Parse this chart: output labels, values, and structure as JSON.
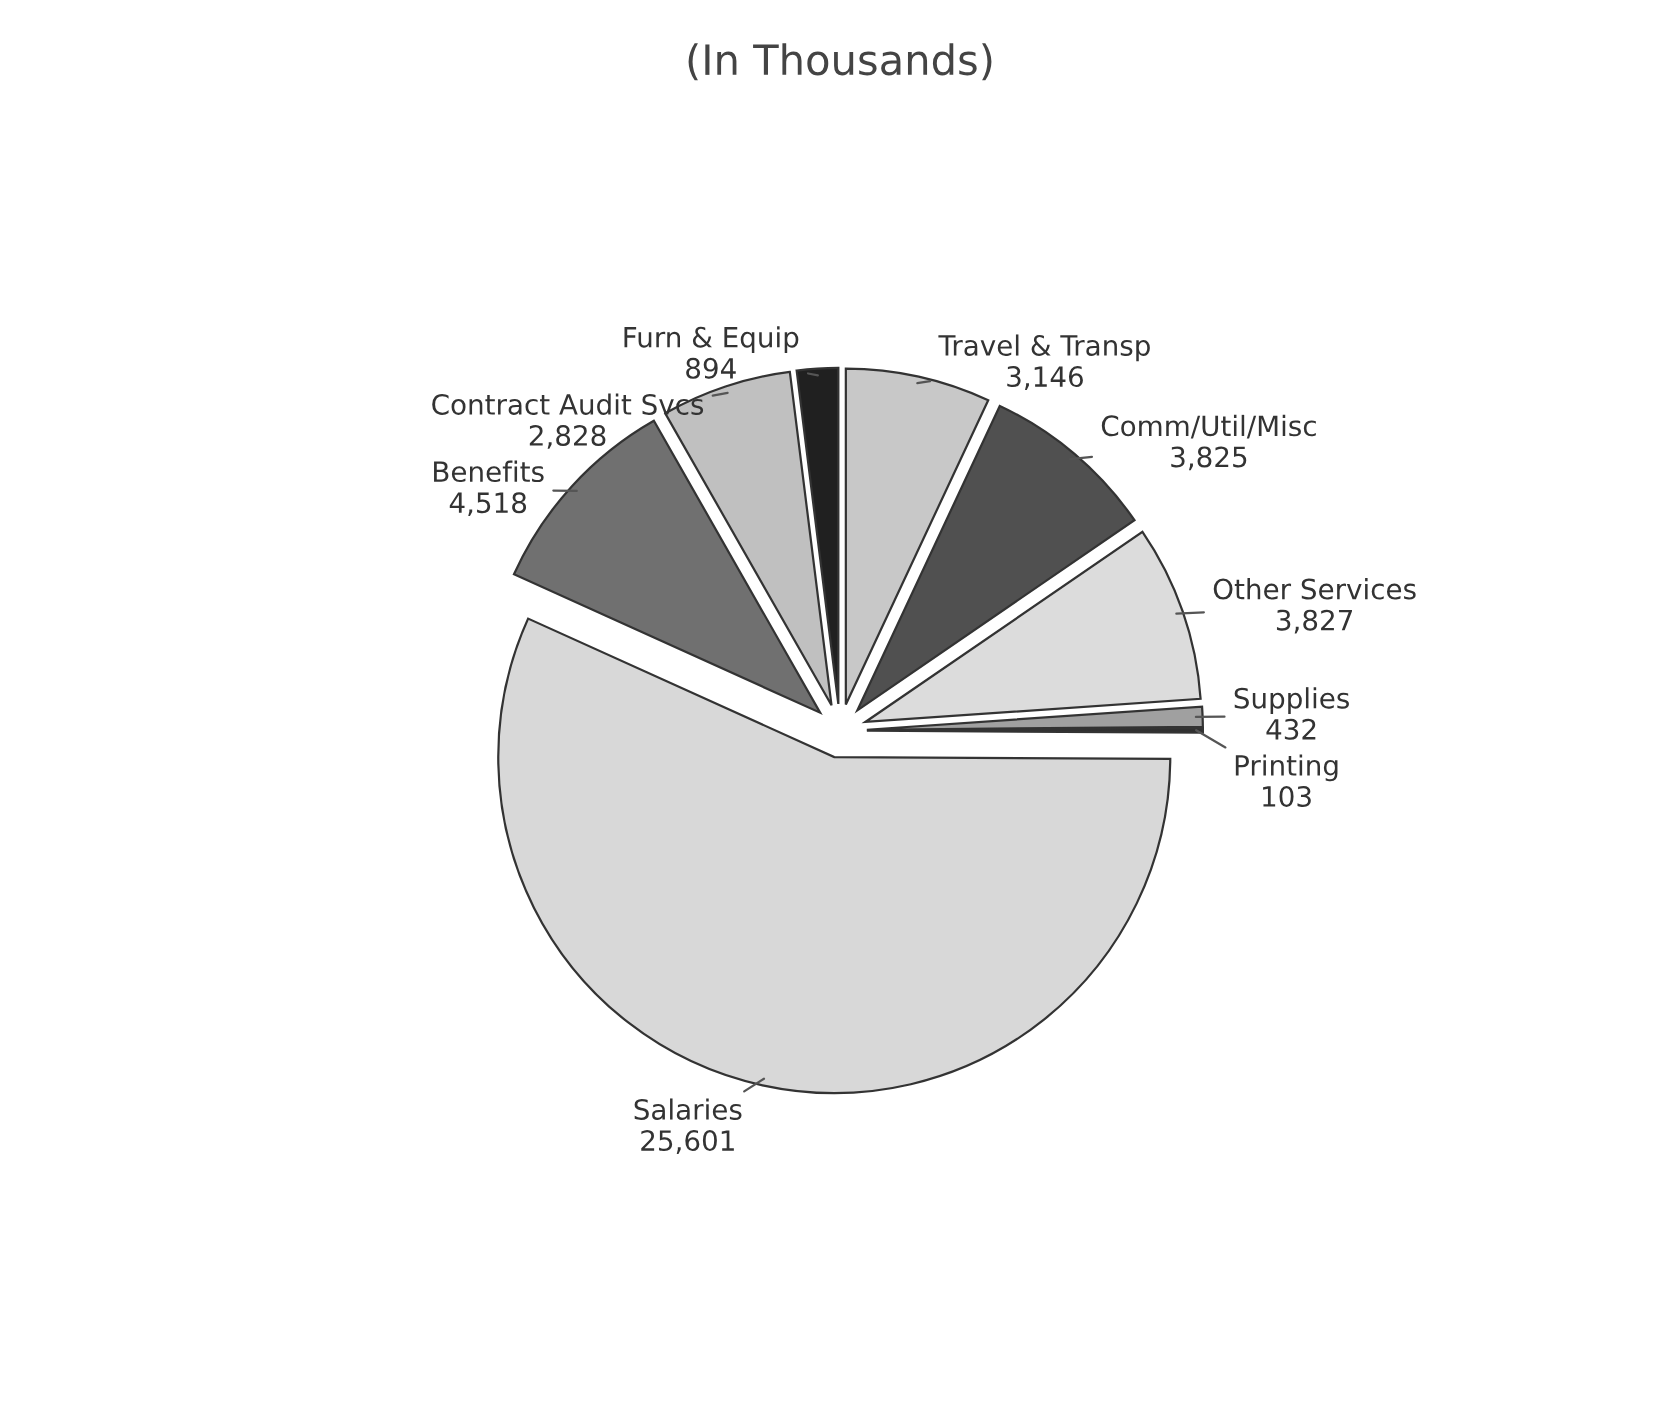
{
  "chart_data": {
    "type": "pie",
    "subtitle": "(In Thousands)",
    "categories": [
      "Travel & Transp",
      "Comm/Util/Misc",
      "Other Services",
      "Supplies",
      "Printing",
      "Salaries",
      "Benefits",
      "Contract Audit Svcs",
      "Furn & Equip"
    ],
    "values": [
      3146,
      3825,
      3827,
      432,
      103,
      25601,
      4518,
      2828,
      894
    ],
    "value_labels": [
      "3,146",
      "3,825",
      "3,827",
      "432",
      "103",
      "25,601",
      "4,518",
      "2,828",
      "894"
    ],
    "colors": [
      "#c8c8c8",
      "#505050",
      "#dcdcdc",
      "#a0a0a0",
      "#303030",
      "#d8d8d8",
      "#707070",
      "#c0c0c0",
      "#202020"
    ],
    "legend": false
  }
}
